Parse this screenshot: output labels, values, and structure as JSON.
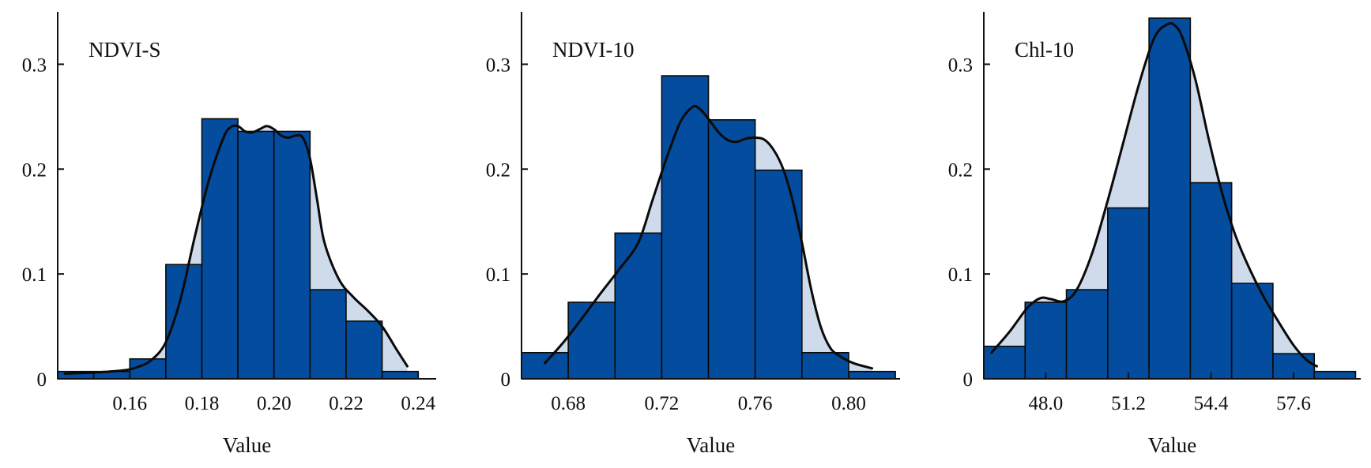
{
  "chart_data": [
    {
      "type": "bar",
      "panel_label": "NDVI-S",
      "xlabel": "Value",
      "ylabel": "",
      "xlim": [
        0.14,
        0.245
      ],
      "ylim": [
        0,
        0.35
      ],
      "xticks": [
        0.16,
        0.18,
        0.2,
        0.22,
        0.24
      ],
      "xtick_labels": [
        "0.16",
        "0.18",
        "0.20",
        "0.22",
        "0.24"
      ],
      "yticks": [
        0,
        0.1,
        0.2,
        0.3
      ],
      "ytick_labels": [
        "0",
        "0.1",
        "0.2",
        "0.3"
      ],
      "bins": [
        {
          "x0": 0.14,
          "x1": 0.15,
          "value": 0.007
        },
        {
          "x0": 0.15,
          "x1": 0.16,
          "value": 0.007
        },
        {
          "x0": 0.16,
          "x1": 0.17,
          "value": 0.019
        },
        {
          "x0": 0.17,
          "x1": 0.18,
          "value": 0.109
        },
        {
          "x0": 0.18,
          "x1": 0.19,
          "value": 0.248
        },
        {
          "x0": 0.19,
          "x1": 0.2,
          "value": 0.236
        },
        {
          "x0": 0.2,
          "x1": 0.21,
          "value": 0.236
        },
        {
          "x0": 0.21,
          "x1": 0.22,
          "value": 0.085
        },
        {
          "x0": 0.22,
          "x1": 0.23,
          "value": 0.055
        },
        {
          "x0": 0.23,
          "x1": 0.24,
          "value": 0.007
        }
      ],
      "density_curve": {
        "x": [
          0.142,
          0.15,
          0.158,
          0.162,
          0.166,
          0.17,
          0.174,
          0.178,
          0.182,
          0.186,
          0.188,
          0.19,
          0.192,
          0.194,
          0.196,
          0.198,
          0.2,
          0.202,
          0.204,
          0.206,
          0.208,
          0.21,
          0.212,
          0.214,
          0.218,
          0.222,
          0.226,
          0.23,
          0.234,
          0.237
        ],
        "y": [
          0.005,
          0.006,
          0.008,
          0.011,
          0.018,
          0.035,
          0.075,
          0.135,
          0.19,
          0.23,
          0.24,
          0.241,
          0.236,
          0.235,
          0.238,
          0.241,
          0.238,
          0.232,
          0.23,
          0.232,
          0.23,
          0.21,
          0.17,
          0.13,
          0.095,
          0.078,
          0.065,
          0.05,
          0.028,
          0.012
        ]
      }
    },
    {
      "type": "bar",
      "panel_label": "NDVI-10",
      "xlabel": "Value",
      "ylabel": "",
      "xlim": [
        0.66,
        0.822
      ],
      "ylim": [
        0,
        0.35
      ],
      "xticks": [
        0.68,
        0.72,
        0.76,
        0.8
      ],
      "xtick_labels": [
        "0.68",
        "0.72",
        "0.76",
        "0.80"
      ],
      "yticks": [
        0,
        0.1,
        0.2,
        0.3
      ],
      "ytick_labels": [
        "0",
        "0.1",
        "0.2",
        "0.3"
      ],
      "bins": [
        {
          "x0": 0.66,
          "x1": 0.68,
          "value": 0.025
        },
        {
          "x0": 0.68,
          "x1": 0.7,
          "value": 0.073
        },
        {
          "x0": 0.7,
          "x1": 0.72,
          "value": 0.139
        },
        {
          "x0": 0.72,
          "x1": 0.74,
          "value": 0.289
        },
        {
          "x0": 0.74,
          "x1": 0.76,
          "value": 0.247
        },
        {
          "x0": 0.76,
          "x1": 0.78,
          "value": 0.199
        },
        {
          "x0": 0.78,
          "x1": 0.8,
          "value": 0.025
        },
        {
          "x0": 0.8,
          "x1": 0.82,
          "value": 0.007
        }
      ],
      "density_curve": {
        "x": [
          0.67,
          0.678,
          0.686,
          0.694,
          0.702,
          0.71,
          0.716,
          0.722,
          0.728,
          0.733,
          0.736,
          0.74,
          0.744,
          0.748,
          0.752,
          0.756,
          0.76,
          0.764,
          0.768,
          0.772,
          0.776,
          0.78,
          0.784,
          0.788,
          0.792,
          0.796,
          0.802,
          0.81
        ],
        "y": [
          0.015,
          0.035,
          0.058,
          0.082,
          0.105,
          0.13,
          0.17,
          0.21,
          0.245,
          0.259,
          0.258,
          0.248,
          0.236,
          0.228,
          0.226,
          0.229,
          0.23,
          0.228,
          0.218,
          0.2,
          0.17,
          0.13,
          0.085,
          0.05,
          0.03,
          0.022,
          0.015,
          0.01
        ]
      }
    },
    {
      "type": "bar",
      "panel_label": "Chl-10",
      "xlabel": "Value",
      "ylabel": "",
      "xlim": [
        45.6,
        60.2
      ],
      "ylim": [
        0,
        0.35
      ],
      "xticks": [
        48.0,
        51.2,
        54.4,
        57.6
      ],
      "xtick_labels": [
        "48.0",
        "51.2",
        "54.4",
        "57.6"
      ],
      "yticks": [
        0,
        0.1,
        0.2,
        0.3
      ],
      "ytick_labels": [
        "0",
        "0.1",
        "0.2",
        "0.3"
      ],
      "bins": [
        {
          "x0": 45.6,
          "x1": 47.2,
          "value": 0.031
        },
        {
          "x0": 47.2,
          "x1": 48.8,
          "value": 0.073
        },
        {
          "x0": 48.8,
          "x1": 50.4,
          "value": 0.085
        },
        {
          "x0": 50.4,
          "x1": 52.0,
          "value": 0.163
        },
        {
          "x0": 52.0,
          "x1": 53.6,
          "value": 0.344
        },
        {
          "x0": 53.6,
          "x1": 55.2,
          "value": 0.187
        },
        {
          "x0": 55.2,
          "x1": 56.8,
          "value": 0.091
        },
        {
          "x0": 56.8,
          "x1": 58.4,
          "value": 0.024
        },
        {
          "x0": 58.4,
          "x1": 60.0,
          "value": 0.007
        }
      ],
      "density_curve": {
        "x": [
          45.9,
          46.6,
          47.3,
          47.8,
          48.2,
          48.7,
          49.2,
          49.8,
          50.4,
          51.0,
          51.6,
          52.2,
          52.7,
          53.0,
          53.3,
          53.8,
          54.3,
          54.8,
          55.3,
          55.8,
          56.4,
          57.0,
          57.6,
          58.1,
          58.5
        ],
        "y": [
          0.025,
          0.045,
          0.068,
          0.077,
          0.076,
          0.074,
          0.085,
          0.12,
          0.17,
          0.225,
          0.28,
          0.325,
          0.338,
          0.337,
          0.325,
          0.285,
          0.23,
          0.18,
          0.14,
          0.11,
          0.08,
          0.055,
          0.032,
          0.018,
          0.012
        ]
      }
    }
  ],
  "colors": {
    "bar_fill": "#034c9e",
    "bar_stroke": "#0a0a0a",
    "density_fill": "#cfdbeb",
    "curve": "#0a0a0a",
    "axis": "#111111"
  }
}
